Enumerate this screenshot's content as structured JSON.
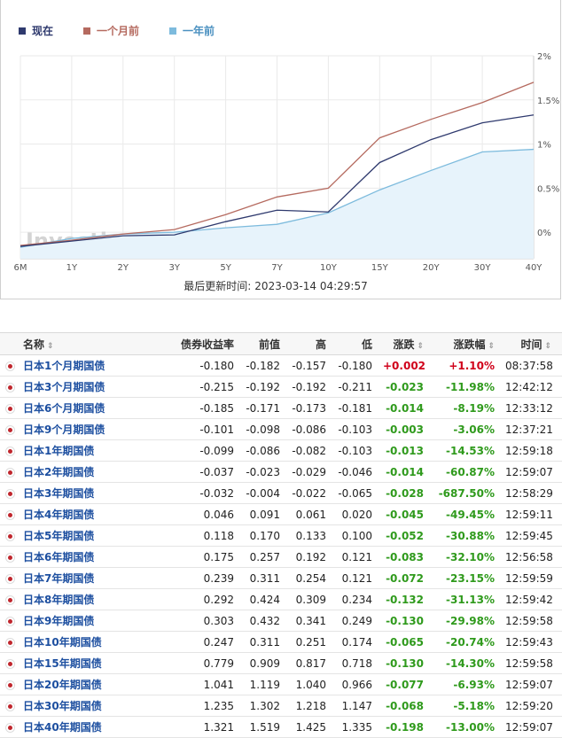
{
  "chart_data": {
    "type": "line",
    "title": "",
    "xlabel": "",
    "ylabel": "",
    "categories": [
      "6M",
      "1Y",
      "2Y",
      "3Y",
      "5Y",
      "7Y",
      "10Y",
      "15Y",
      "20Y",
      "30Y",
      "40Y"
    ],
    "y_tick_labels": [
      "2%",
      "1.5%",
      "1%",
      "0.5%",
      "0%"
    ],
    "y_ticks": [
      2,
      1.5,
      1,
      0.5,
      0
    ],
    "ylim": [
      -0.3,
      2.0
    ],
    "grid": true,
    "legend_position": "top-left",
    "series": [
      {
        "name": "现在",
        "color": "#2f3a6e",
        "fill": false,
        "values": [
          -0.16,
          -0.1,
          -0.04,
          -0.03,
          0.12,
          0.25,
          0.23,
          0.79,
          1.05,
          1.24,
          1.33
        ]
      },
      {
        "name": "一个月前",
        "color": "#b56a5f",
        "fill": false,
        "values": [
          -0.15,
          -0.09,
          -0.02,
          0.03,
          0.2,
          0.4,
          0.5,
          1.07,
          1.28,
          1.47,
          1.7
        ]
      },
      {
        "name": "一年前",
        "color": "#7dbbdd",
        "fill": true,
        "fill_color": "#e7f3fb",
        "values": [
          -0.17,
          -0.07,
          -0.02,
          0.0,
          0.05,
          0.09,
          0.22,
          0.48,
          0.7,
          0.91,
          0.94
        ]
      }
    ],
    "watermark": "Investing.com"
  },
  "updated": {
    "label": "最后更新时间:",
    "value": "2023-03-14 04:29:57"
  },
  "table": {
    "headers": {
      "name": "名称",
      "yield": "债券收益率",
      "prev": "前值",
      "high": "高",
      "low": "低",
      "change": "涨跌",
      "change_pct": "涨跌幅",
      "time": "时间"
    },
    "sort_icon": "⇕",
    "rows": [
      {
        "name": "日本1个月期国债",
        "yield": "-0.180",
        "prev": "-0.182",
        "high": "-0.157",
        "low": "-0.180",
        "change": "+0.002",
        "change_pct": "+1.10%",
        "time": "08:37:58",
        "dir": "up"
      },
      {
        "name": "日本3个月期国债",
        "yield": "-0.215",
        "prev": "-0.192",
        "high": "-0.192",
        "low": "-0.211",
        "change": "-0.023",
        "change_pct": "-11.98%",
        "time": "12:42:12",
        "dir": "down"
      },
      {
        "name": "日本6个月期国债",
        "yield": "-0.185",
        "prev": "-0.171",
        "high": "-0.173",
        "low": "-0.181",
        "change": "-0.014",
        "change_pct": "-8.19%",
        "time": "12:33:12",
        "dir": "down"
      },
      {
        "name": "日本9个月期国债",
        "yield": "-0.101",
        "prev": "-0.098",
        "high": "-0.086",
        "low": "-0.103",
        "change": "-0.003",
        "change_pct": "-3.06%",
        "time": "12:37:21",
        "dir": "down"
      },
      {
        "name": "日本1年期国债",
        "yield": "-0.099",
        "prev": "-0.086",
        "high": "-0.082",
        "low": "-0.103",
        "change": "-0.013",
        "change_pct": "-14.53%",
        "time": "12:59:18",
        "dir": "down"
      },
      {
        "name": "日本2年期国债",
        "yield": "-0.037",
        "prev": "-0.023",
        "high": "-0.029",
        "low": "-0.046",
        "change": "-0.014",
        "change_pct": "-60.87%",
        "time": "12:59:07",
        "dir": "down"
      },
      {
        "name": "日本3年期国债",
        "yield": "-0.032",
        "prev": "-0.004",
        "high": "-0.022",
        "low": "-0.065",
        "change": "-0.028",
        "change_pct": "-687.50%",
        "time": "12:58:29",
        "dir": "down"
      },
      {
        "name": "日本4年期国债",
        "yield": "0.046",
        "prev": "0.091",
        "high": "0.061",
        "low": "0.020",
        "change": "-0.045",
        "change_pct": "-49.45%",
        "time": "12:59:11",
        "dir": "down"
      },
      {
        "name": "日本5年期国债",
        "yield": "0.118",
        "prev": "0.170",
        "high": "0.133",
        "low": "0.100",
        "change": "-0.052",
        "change_pct": "-30.88%",
        "time": "12:59:45",
        "dir": "down"
      },
      {
        "name": "日本6年期国债",
        "yield": "0.175",
        "prev": "0.257",
        "high": "0.192",
        "low": "0.121",
        "change": "-0.083",
        "change_pct": "-32.10%",
        "time": "12:56:58",
        "dir": "down"
      },
      {
        "name": "日本7年期国债",
        "yield": "0.239",
        "prev": "0.311",
        "high": "0.254",
        "low": "0.121",
        "change": "-0.072",
        "change_pct": "-23.15%",
        "time": "12:59:59",
        "dir": "down"
      },
      {
        "name": "日本8年期国债",
        "yield": "0.292",
        "prev": "0.424",
        "high": "0.309",
        "low": "0.234",
        "change": "-0.132",
        "change_pct": "-31.13%",
        "time": "12:59:42",
        "dir": "down"
      },
      {
        "name": "日本9年期国债",
        "yield": "0.303",
        "prev": "0.432",
        "high": "0.341",
        "low": "0.249",
        "change": "-0.130",
        "change_pct": "-29.98%",
        "time": "12:59:58",
        "dir": "down"
      },
      {
        "name": "日本10年期国债",
        "yield": "0.247",
        "prev": "0.311",
        "high": "0.251",
        "low": "0.174",
        "change": "-0.065",
        "change_pct": "-20.74%",
        "time": "12:59:43",
        "dir": "down"
      },
      {
        "name": "日本15年期国债",
        "yield": "0.779",
        "prev": "0.909",
        "high": "0.817",
        "low": "0.718",
        "change": "-0.130",
        "change_pct": "-14.30%",
        "time": "12:59:58",
        "dir": "down"
      },
      {
        "name": "日本20年期国债",
        "yield": "1.041",
        "prev": "1.119",
        "high": "1.040",
        "low": "0.966",
        "change": "-0.077",
        "change_pct": "-6.93%",
        "time": "12:59:07",
        "dir": "down"
      },
      {
        "name": "日本30年期国债",
        "yield": "1.235",
        "prev": "1.302",
        "high": "1.218",
        "low": "1.147",
        "change": "-0.068",
        "change_pct": "-5.18%",
        "time": "12:59:20",
        "dir": "down"
      },
      {
        "name": "日本40年期国债",
        "yield": "1.321",
        "prev": "1.519",
        "high": "1.425",
        "low": "1.335",
        "change": "-0.198",
        "change_pct": "-13.00%",
        "time": "12:59:07",
        "dir": "down"
      }
    ]
  }
}
